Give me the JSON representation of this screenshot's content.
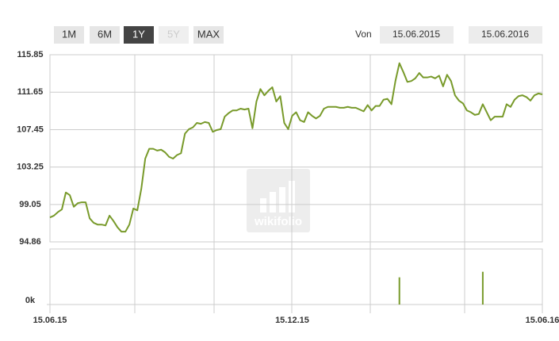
{
  "toolbar": {
    "ranges": [
      "1M",
      "6M",
      "1Y",
      "5Y",
      "MAX"
    ],
    "active": "1Y",
    "disabled": [
      "5Y"
    ],
    "from_label": "Von",
    "from_date": "15.06.2015",
    "to_date": "15.06.2016"
  },
  "watermark": "wikifolio",
  "chart_data": [
    {
      "type": "line",
      "color": "#789a2a",
      "x": [
        "15.06.15",
        null,
        null,
        null,
        null,
        null,
        null,
        null,
        null,
        null,
        null,
        null,
        null,
        null,
        null,
        null,
        null,
        null,
        null,
        null,
        null,
        null,
        null,
        null,
        null,
        null,
        null,
        null,
        null,
        null,
        null,
        null,
        null,
        null,
        null,
        null,
        null,
        null,
        null,
        null,
        null,
        null,
        null,
        null,
        null,
        null,
        null,
        null,
        null,
        null,
        null,
        null,
        null,
        null,
        null,
        null,
        null,
        null,
        null,
        null,
        null,
        "15.12.15",
        null,
        null,
        null,
        null,
        null,
        null,
        null,
        null,
        null,
        null,
        null,
        null,
        null,
        null,
        null,
        null,
        null,
        null,
        null,
        null,
        null,
        null,
        null,
        null,
        null,
        null,
        null,
        null,
        null,
        null,
        null,
        null,
        null,
        null,
        null,
        null,
        null,
        null,
        null,
        null,
        null,
        null,
        null,
        null,
        null,
        null,
        null,
        null,
        null,
        null,
        null,
        null,
        null,
        null,
        null,
        null,
        null,
        null,
        null,
        null,
        null,
        null,
        "15.06.16"
      ],
      "values": [
        97.6,
        97.8,
        98.2,
        98.5,
        100.4,
        100.1,
        98.8,
        99.2,
        99.3,
        99.3,
        97.5,
        97.0,
        96.8,
        96.8,
        96.7,
        97.8,
        97.2,
        96.5,
        96.0,
        96.0,
        96.8,
        98.6,
        98.4,
        100.8,
        104.2,
        105.3,
        105.3,
        105.1,
        105.2,
        104.9,
        104.4,
        104.2,
        104.6,
        104.8,
        107.0,
        107.5,
        107.7,
        108.2,
        108.1,
        108.3,
        108.2,
        107.2,
        107.4,
        107.5,
        108.9,
        109.3,
        109.6,
        109.6,
        109.8,
        109.7,
        109.8,
        107.6,
        110.6,
        112.0,
        111.3,
        111.8,
        112.2,
        110.6,
        111.2,
        108.2,
        107.5,
        109.0,
        109.4,
        108.5,
        108.3,
        109.4,
        109.0,
        108.7,
        109.0,
        109.8,
        110.0,
        110.0,
        110.0,
        109.9,
        109.9,
        110.0,
        109.9,
        109.9,
        109.7,
        109.5,
        110.2,
        109.6,
        110.1,
        110.1,
        110.8,
        110.9,
        110.3,
        112.9,
        114.9,
        113.9,
        112.8,
        112.9,
        113.2,
        113.8,
        113.3,
        113.3,
        113.4,
        113.2,
        113.5,
        112.3,
        113.6,
        112.9,
        111.3,
        110.7,
        110.4,
        109.6,
        109.4,
        109.1,
        109.2,
        110.3,
        109.4,
        108.5,
        108.9,
        108.9,
        108.9,
        110.3,
        110.0,
        110.8,
        111.2,
        111.3,
        111.1,
        110.7,
        111.3,
        111.5,
        111.4
      ],
      "ylim": [
        94.86,
        115.85
      ],
      "yticks": [
        115.85,
        111.65,
        107.45,
        103.25,
        99.05,
        94.86
      ],
      "grid": true
    },
    {
      "type": "bar",
      "color": "#789a2a",
      "values": [
        null,
        null,
        null,
        null,
        null,
        null,
        null,
        null,
        null,
        null,
        null,
        null,
        null,
        null,
        null,
        null,
        null,
        null,
        null,
        null,
        null,
        null,
        null,
        null,
        null,
        null,
        null,
        null,
        null,
        null,
        null,
        null,
        null,
        null,
        null,
        null,
        null,
        null,
        null,
        null,
        null,
        null,
        null,
        null,
        null,
        null,
        null,
        null,
        null,
        null,
        null,
        null,
        null,
        null,
        null,
        null,
        null,
        null,
        null,
        null,
        null,
        null,
        null,
        null,
        null,
        null,
        null,
        null,
        null,
        null,
        null,
        null,
        null,
        null,
        null,
        null,
        null,
        null,
        null,
        null,
        null,
        null,
        null,
        null,
        null,
        null,
        null,
        null,
        4.9,
        null,
        null,
        null,
        null,
        null,
        null,
        null,
        null,
        null,
        null,
        null,
        null,
        null,
        null,
        null,
        null,
        null,
        null,
        null,
        null,
        5.9,
        null,
        null,
        null,
        null,
        null,
        null,
        null,
        null,
        null,
        null,
        null,
        null,
        null,
        null,
        null
      ],
      "ylim": [
        0,
        10
      ],
      "yticks": [
        {
          "value": 0,
          "label": "0k"
        }
      ]
    }
  ]
}
